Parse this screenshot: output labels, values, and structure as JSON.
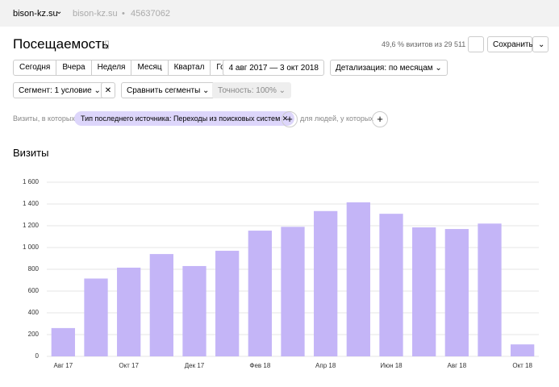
{
  "header": {
    "site": "bison-kz.su",
    "site_secondary": "bison-kz.su",
    "counter_id": "45637062"
  },
  "report": {
    "title": "Посещаемость",
    "visits_share": "49,6 % визитов из 29 511",
    "save": "Сохранить"
  },
  "periods": [
    "Сегодня",
    "Вчера",
    "Неделя",
    "Месяц",
    "Квартал",
    "Год"
  ],
  "date_range": "4 авг 2017 — 3 окт 2018",
  "detail": "Детализация: по месяцам",
  "segment": "Сегмент: 1 условие",
  "compare": "Сравнить сегменты",
  "accuracy": "Точность: 100%",
  "filter": {
    "prefix": "Визиты, в которых",
    "chip": "Тип последнего источника: Переходы из поисковых систем",
    "people": "для людей, у которых"
  },
  "chart_data": {
    "type": "bar",
    "title": "Визиты",
    "categories": [
      "Авг 17",
      null,
      "Окт 17",
      null,
      "Дек 17",
      null,
      "Фев 18",
      null,
      "Апр 18",
      null,
      "Июн 18",
      null,
      "Авг 18",
      null,
      "Окт 18"
    ],
    "values": [
      260,
      715,
      815,
      940,
      830,
      970,
      1155,
      1190,
      1335,
      1415,
      1310,
      1185,
      1170,
      1220,
      110
    ],
    "color": "#c4b5f7",
    "ylim": [
      0,
      1600
    ],
    "yticks": [
      0,
      200,
      400,
      600,
      800,
      {
        "value": 1000,
        "label": "1 000"
      },
      {
        "value": 1200,
        "label": "1 200"
      },
      {
        "value": 1400,
        "label": "1 400"
      },
      {
        "value": 1600,
        "label": "1 600"
      }
    ],
    "grid": true
  }
}
